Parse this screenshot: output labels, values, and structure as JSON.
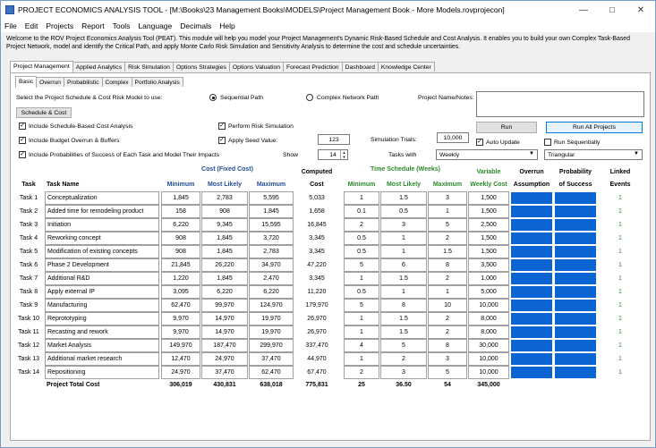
{
  "window": {
    "title": "PROJECT ECONOMICS ANALYSIS TOOL - [M:\\Books\\23 Management Books\\MODELS\\Project Management Book - More Models.rovprojecon]"
  },
  "menu": [
    "File",
    "Edit",
    "Projects",
    "Report",
    "Tools",
    "Language",
    "Decimals",
    "Help"
  ],
  "intro": "Welcome to the ROV Project Economics Analysis Tool (PEAT). This module will help you model your Project Management's Dynamic Risk-Based Schedule and Cost Analysis. It enables you to build your own Complex Task-Based Project Network, model and identify the Critical Path, and apply Monte Carlo Risk Simulation and Sensitivity Analysis to determine the cost and schedule uncertainties.",
  "main_tabs": [
    "Project Management",
    "Applied Analytics",
    "Risk Simulation",
    "Options Strategies",
    "Options Valuation",
    "Forecast Prediction",
    "Dashboard",
    "Knowledge Center"
  ],
  "sub_tabs": [
    "Basic",
    "Overrun",
    "Probabilistic",
    "Complex",
    "Portfolio Analysis"
  ],
  "controls": {
    "select_label": "Select the Project Schedule & Cost Risk Model to use:",
    "sequential": "Sequential Path",
    "complex": "Complex Network Path",
    "notes_label": "Project Name/Notes:",
    "schedule_cost_btn": "Schedule & Cost",
    "chk_schedule_cost": "Include Schedule-Based Cost Analysis",
    "chk_budget": "Include Budget Overrun & Buffers",
    "chk_probabilities": "Include Probabilities of Success of Each Task and Model Their Impacts",
    "chk_risk": "Perform Risk Simulation",
    "chk_seed": "Apply Seed Value:",
    "seed_value": "123",
    "sim_trials_label": "Simulation Trials:",
    "sim_trials": "10,000",
    "show_label": "Show",
    "show_value": "14",
    "tasks_with_label": "Tasks with",
    "tasks_with_value": "Weekly",
    "dist_value": "Triangular",
    "run": "Run",
    "run_all": "Run All Projects",
    "auto_update": "Auto Update",
    "run_seq": "Run Sequentially",
    "check": "✓"
  },
  "headers": {
    "cost_group": "Cost (Fixed Cost)",
    "computed": "Computed",
    "time_group": "Time Schedule (Weeks)",
    "variable": "Variable",
    "overrun": "Overrun",
    "probability": "Probability",
    "linked": "Linked",
    "task": "Task",
    "task_name": "Task Name",
    "minimum": "Minimum",
    "most_likely": "Most Likely",
    "maximum": "Maximum",
    "cost": "Cost",
    "t_minimum": "Minimum",
    "t_most_likely": "Most Likely",
    "t_maximum": "Maximum",
    "weekly_cost": "Weekly Cost",
    "assumption": "Assumption",
    "of_success": "of Success",
    "events": "Events"
  },
  "rows": [
    {
      "task": "Task 1",
      "name": "Conceptualization",
      "min": "1,845",
      "ml": "2,783",
      "max": "5,595",
      "cost": "5,033",
      "tmin": "1",
      "tml": "1.5",
      "tmax": "3",
      "wk": "1,500",
      "ev": "1"
    },
    {
      "task": "Task 2",
      "name": "Added time for remodeling product",
      "min": "158",
      "ml": "908",
      "max": "1,845",
      "cost": "1,658",
      "tmin": "0.1",
      "tml": "0.5",
      "tmax": "1",
      "wk": "1,500",
      "ev": "1"
    },
    {
      "task": "Task 3",
      "name": "Initiation",
      "min": "6,220",
      "ml": "9,345",
      "max": "15,595",
      "cost": "16,845",
      "tmin": "2",
      "tml": "3",
      "tmax": "5",
      "wk": "2,500",
      "ev": "1"
    },
    {
      "task": "Task 4",
      "name": "Reworking concept",
      "min": "908",
      "ml": "1,845",
      "max": "3,720",
      "cost": "3,345",
      "tmin": "0.5",
      "tml": "1",
      "tmax": "2",
      "wk": "1,500",
      "ev": "1"
    },
    {
      "task": "Task 5",
      "name": "Modification of existing concepts",
      "min": "908",
      "ml": "1,845",
      "max": "2,783",
      "cost": "3,345",
      "tmin": "0.5",
      "tml": "1",
      "tmax": "1.5",
      "wk": "1,500",
      "ev": "1"
    },
    {
      "task": "Task 6",
      "name": "Phase 2 Development",
      "min": "21,845",
      "ml": "26,220",
      "max": "34,970",
      "cost": "47,220",
      "tmin": "5",
      "tml": "6",
      "tmax": "8",
      "wk": "3,500",
      "ev": "1"
    },
    {
      "task": "Task 7",
      "name": "Additional R&D",
      "min": "1,220",
      "ml": "1,845",
      "max": "2,470",
      "cost": "3,345",
      "tmin": "1",
      "tml": "1.5",
      "tmax": "2",
      "wk": "1,000",
      "ev": "1"
    },
    {
      "task": "Task 8",
      "name": "Apply external IP",
      "min": "3,095",
      "ml": "6,220",
      "max": "6,220",
      "cost": "11,220",
      "tmin": "0.5",
      "tml": "1",
      "tmax": "1",
      "wk": "5,000",
      "ev": "1"
    },
    {
      "task": "Task 9",
      "name": "Manufacturing",
      "min": "62,470",
      "ml": "99,970",
      "max": "124,970",
      "cost": "179,970",
      "tmin": "5",
      "tml": "8",
      "tmax": "10",
      "wk": "10,000",
      "ev": "1"
    },
    {
      "task": "Task 10",
      "name": "Reprototyping",
      "min": "9,970",
      "ml": "14,970",
      "max": "19,970",
      "cost": "26,970",
      "tmin": "1",
      "tml": "1.5",
      "tmax": "2",
      "wk": "8,000",
      "ev": "1"
    },
    {
      "task": "Task 11",
      "name": "Recasting and rework",
      "min": "9,970",
      "ml": "14,970",
      "max": "19,970",
      "cost": "26,970",
      "tmin": "1",
      "tml": "1.5",
      "tmax": "2",
      "wk": "8,000",
      "ev": "1"
    },
    {
      "task": "Task 12",
      "name": "Market Analysis",
      "min": "149,970",
      "ml": "187,470",
      "max": "299,970",
      "cost": "337,470",
      "tmin": "4",
      "tml": "5",
      "tmax": "8",
      "wk": "30,000",
      "ev": "1"
    },
    {
      "task": "Task 13",
      "name": "Additional market research",
      "min": "12,470",
      "ml": "24,970",
      "max": "37,470",
      "cost": "44,970",
      "tmin": "1",
      "tml": "2",
      "tmax": "3",
      "wk": "10,000",
      "ev": "1"
    },
    {
      "task": "Task 14",
      "name": "Repositioning",
      "min": "24,970",
      "ml": "37,470",
      "max": "62,470",
      "cost": "67,470",
      "tmin": "2",
      "tml": "3",
      "tmax": "5",
      "wk": "10,000",
      "ev": "1"
    }
  ],
  "totals": {
    "label": "Project Total Cost",
    "min": "306,019",
    "ml": "430,831",
    "max": "638,018",
    "cost": "775,831",
    "tmin": "25",
    "tml": "36.50",
    "tmax": "54",
    "wk": "345,000"
  }
}
